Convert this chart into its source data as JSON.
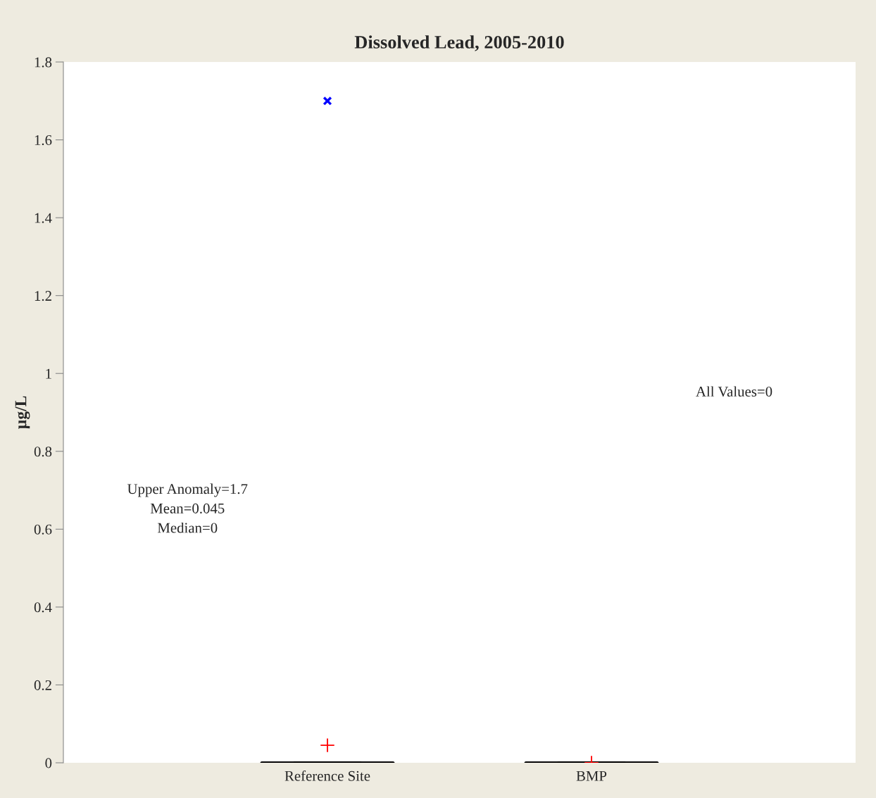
{
  "chart_data": {
    "type": "box",
    "title": "Dissolved Lead, 2005-2010",
    "ylabel": "µg/L",
    "categories": [
      "Reference Site",
      "BMP"
    ],
    "boxes": [
      {
        "low": 0,
        "q1": 0,
        "median": 0,
        "q3": 0,
        "high": 0,
        "mean": 0.045,
        "outliers": [
          1.7
        ]
      },
      {
        "low": 0,
        "q1": 0,
        "median": 0,
        "q3": 0,
        "high": 0,
        "mean": 0
      }
    ],
    "ylim": [
      0,
      1.8
    ],
    "yticks": [
      0,
      0.2,
      0.4,
      0.6,
      0.8,
      1,
      1.2,
      1.4,
      1.6,
      1.8
    ],
    "legend": false,
    "annotations": [
      "Upper Anomaly=1.7",
      "Mean=0.045",
      "Median=0",
      "All Values=0"
    ]
  }
}
